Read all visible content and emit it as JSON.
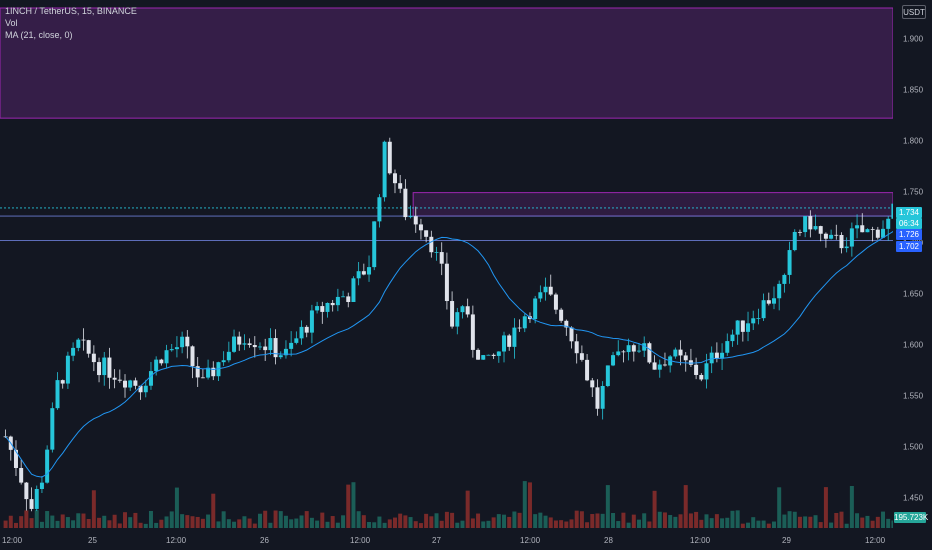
{
  "legend": {
    "symbol": "1INCH / TetherUS, 15, BINANCE",
    "volume": "Vol",
    "ma": "MA (21, close, 0)"
  },
  "currency": "USDT",
  "tags": {
    "last_price": "1.734",
    "countdown": "06:34",
    "price_b": "1.726",
    "price_c": "1.702",
    "volume": "195.723K"
  },
  "colors": {
    "background": "#131722",
    "up": "#26c6da",
    "down": "#e0e3eb",
    "ma_line": "#2196f3",
    "zone_fill": "#3a1f4d",
    "zone_border": "#9c27b0",
    "vol_up": "#1b5e57",
    "vol_down": "#7a2a2a"
  },
  "chart_data": {
    "type": "candlestick",
    "x_ticks": [
      "12:00",
      "25",
      "12:00",
      "26",
      "12:00",
      "27",
      "12:00",
      "28",
      "12:00",
      "29",
      "12:00"
    ],
    "y_ticks": [
      1.45,
      1.5,
      1.55,
      1.6,
      1.65,
      1.7,
      1.75,
      1.8,
      1.85,
      1.9
    ],
    "y_tick_labels": [
      "1.450",
      "1.500",
      "1.550",
      "1.600",
      "1.650",
      "1.700",
      "1.750",
      "1.800",
      "1.850",
      "1.900"
    ],
    "ylim": [
      1.43,
      1.93
    ],
    "price_path": [
      [
        0,
        1.51
      ],
      [
        3,
        1.47
      ],
      [
        5,
        1.44
      ],
      [
        7,
        1.47
      ],
      [
        10,
        1.56
      ],
      [
        14,
        1.6
      ],
      [
        18,
        1.58
      ],
      [
        22,
        1.57
      ],
      [
        26,
        1.56
      ],
      [
        30,
        1.59
      ],
      [
        34,
        1.6
      ],
      [
        38,
        1.56
      ],
      [
        42,
        1.59
      ],
      [
        46,
        1.61
      ],
      [
        50,
        1.6
      ],
      [
        54,
        1.59
      ],
      [
        58,
        1.62
      ],
      [
        62,
        1.64
      ],
      [
        66,
        1.65
      ],
      [
        70,
        1.68
      ],
      [
        73,
        1.79
      ],
      [
        75,
        1.76
      ],
      [
        77,
        1.73
      ],
      [
        80,
        1.72
      ],
      [
        82,
        1.7
      ],
      [
        84,
        1.67
      ],
      [
        86,
        1.62
      ],
      [
        88,
        1.64
      ],
      [
        90,
        1.6
      ],
      [
        93,
        1.58
      ],
      [
        96,
        1.6
      ],
      [
        100,
        1.63
      ],
      [
        104,
        1.65
      ],
      [
        107,
        1.63
      ],
      [
        110,
        1.6
      ],
      [
        112,
        1.57
      ],
      [
        114,
        1.54
      ],
      [
        116,
        1.57
      ],
      [
        119,
        1.6
      ],
      [
        122,
        1.6
      ],
      [
        125,
        1.58
      ],
      [
        128,
        1.59
      ],
      [
        131,
        1.58
      ],
      [
        134,
        1.57
      ],
      [
        138,
        1.6
      ],
      [
        142,
        1.62
      ],
      [
        146,
        1.64
      ],
      [
        150,
        1.66
      ],
      [
        152,
        1.71
      ],
      [
        155,
        1.72
      ],
      [
        158,
        1.7
      ],
      [
        161,
        1.7
      ],
      [
        164,
        1.71
      ],
      [
        167,
        1.71
      ],
      [
        170,
        1.72
      ],
      [
        171,
        1.73
      ]
    ],
    "zones": [
      {
        "from": 1.822,
        "to": 1.93,
        "x_start": 0
      },
      {
        "from": 1.726,
        "to": 1.749,
        "x_start": 79
      }
    ],
    "lines": [
      1.734,
      1.726,
      1.702
    ]
  }
}
